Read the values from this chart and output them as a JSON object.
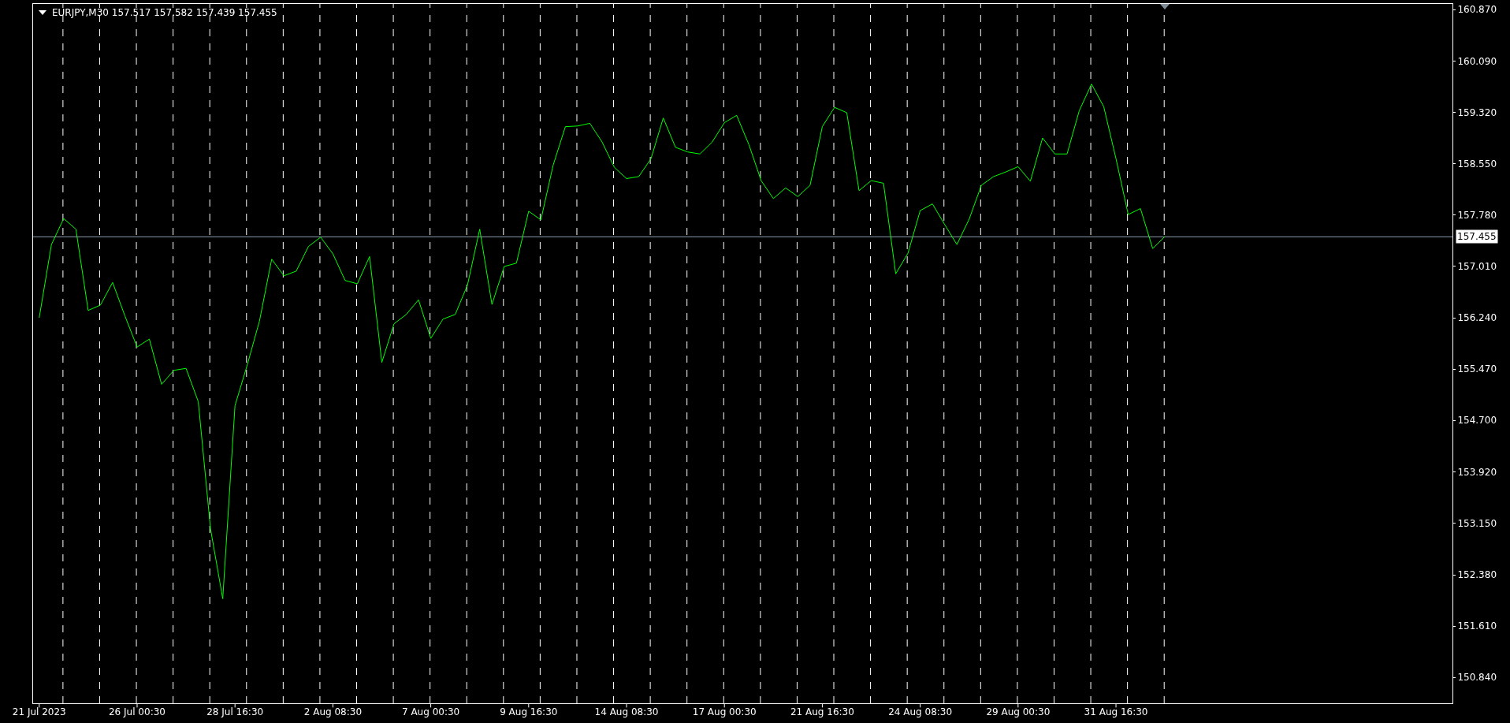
{
  "chart_data": {
    "type": "line",
    "title": "EURJPY,M30 157.517 157.582 157.439 157.455",
    "categories": [
      "21 Jul 2023",
      null,
      null,
      null,
      null,
      null,
      null,
      null,
      "26 Jul 00:30",
      null,
      null,
      null,
      null,
      null,
      null,
      null,
      "28 Jul 16:30",
      null,
      null,
      null,
      null,
      null,
      null,
      null,
      "2 Aug 08:30",
      null,
      null,
      null,
      null,
      null,
      null,
      null,
      "7 Aug 00:30",
      null,
      null,
      null,
      null,
      null,
      null,
      null,
      "9 Aug 16:30",
      null,
      null,
      null,
      null,
      null,
      null,
      null,
      "14 Aug 08:30",
      null,
      null,
      null,
      null,
      null,
      null,
      null,
      "17 Aug 00:30",
      null,
      null,
      null,
      null,
      null,
      null,
      null,
      "21 Aug 16:30",
      null,
      null,
      null,
      null,
      null,
      null,
      null,
      "24 Aug 08:30",
      null,
      null,
      null,
      null,
      null,
      null,
      null,
      "29 Aug 00:30",
      null,
      null,
      null,
      null,
      null,
      null,
      null,
      "31 Aug 16:30",
      null,
      null,
      null,
      null,
      null,
      null,
      null,
      null,
      null,
      null,
      null,
      null,
      null,
      null,
      null,
      null,
      null,
      null,
      null,
      null,
      null,
      null,
      null,
      null,
      null,
      null,
      null
    ],
    "series": [
      {
        "color": "#00ff00",
        "values": [
          156.24,
          157.34,
          157.73,
          157.57,
          156.35,
          156.43,
          156.77,
          156.27,
          155.8,
          155.92,
          155.24,
          155.45,
          155.48,
          154.98,
          153.07,
          152.02,
          154.92,
          155.53,
          156.19,
          157.12,
          156.87,
          156.94,
          157.31,
          157.45,
          157.2,
          156.8,
          156.75,
          157.16,
          155.57,
          156.15,
          156.29,
          156.51,
          155.93,
          156.22,
          156.29,
          156.73,
          157.57,
          156.44,
          157.01,
          157.06,
          157.84,
          157.71,
          158.53,
          159.11,
          159.12,
          159.16,
          158.88,
          158.5,
          158.33,
          158.36,
          158.63,
          159.24,
          158.8,
          158.73,
          158.7,
          158.88,
          159.17,
          159.28,
          158.84,
          158.3,
          158.03,
          158.19,
          158.06,
          158.23,
          159.11,
          159.4,
          159.32,
          158.15,
          158.3,
          158.26,
          156.9,
          157.21,
          157.85,
          157.95,
          157.64,
          157.34,
          157.72,
          158.23,
          158.36,
          158.43,
          158.51,
          158.29,
          158.94,
          158.7,
          158.7,
          159.35,
          159.75,
          159.41,
          158.63,
          157.79,
          157.88,
          157.28,
          157.46,
          null,
          null,
          null,
          null,
          null,
          null,
          null,
          null,
          null,
          null,
          null,
          null,
          null,
          null,
          null,
          null,
          null,
          null,
          null,
          null,
          null,
          null,
          null
        ]
      }
    ],
    "ylim": [
      150.45,
      160.953
    ],
    "yticks": [
      {
        "value": 160.87,
        "label": "160.870"
      },
      {
        "value": 160.09,
        "label": "160.090"
      },
      {
        "value": 159.32,
        "label": "159.320"
      },
      {
        "value": 158.55,
        "label": "158.550"
      },
      {
        "value": 157.78,
        "label": "157.780"
      },
      {
        "value": 157.01,
        "label": "157.010"
      },
      {
        "value": 156.24,
        "label": "156.240"
      },
      {
        "value": 155.47,
        "label": "155.470"
      },
      {
        "value": 154.7,
        "label": "154.700"
      },
      {
        "value": 153.92,
        "label": "153.920"
      },
      {
        "value": 153.15,
        "label": "153.150"
      },
      {
        "value": 152.38,
        "label": "152.380"
      },
      {
        "value": 151.61,
        "label": "151.610"
      },
      {
        "value": 150.84,
        "label": "150.840"
      }
    ],
    "grid": "x",
    "line_style": "solid",
    "ref_lines": [
      {
        "axis": "y",
        "value": 157.455,
        "label": "157.455",
        "color": "#8a9aab",
        "line_style": "solid"
      }
    ]
  }
}
